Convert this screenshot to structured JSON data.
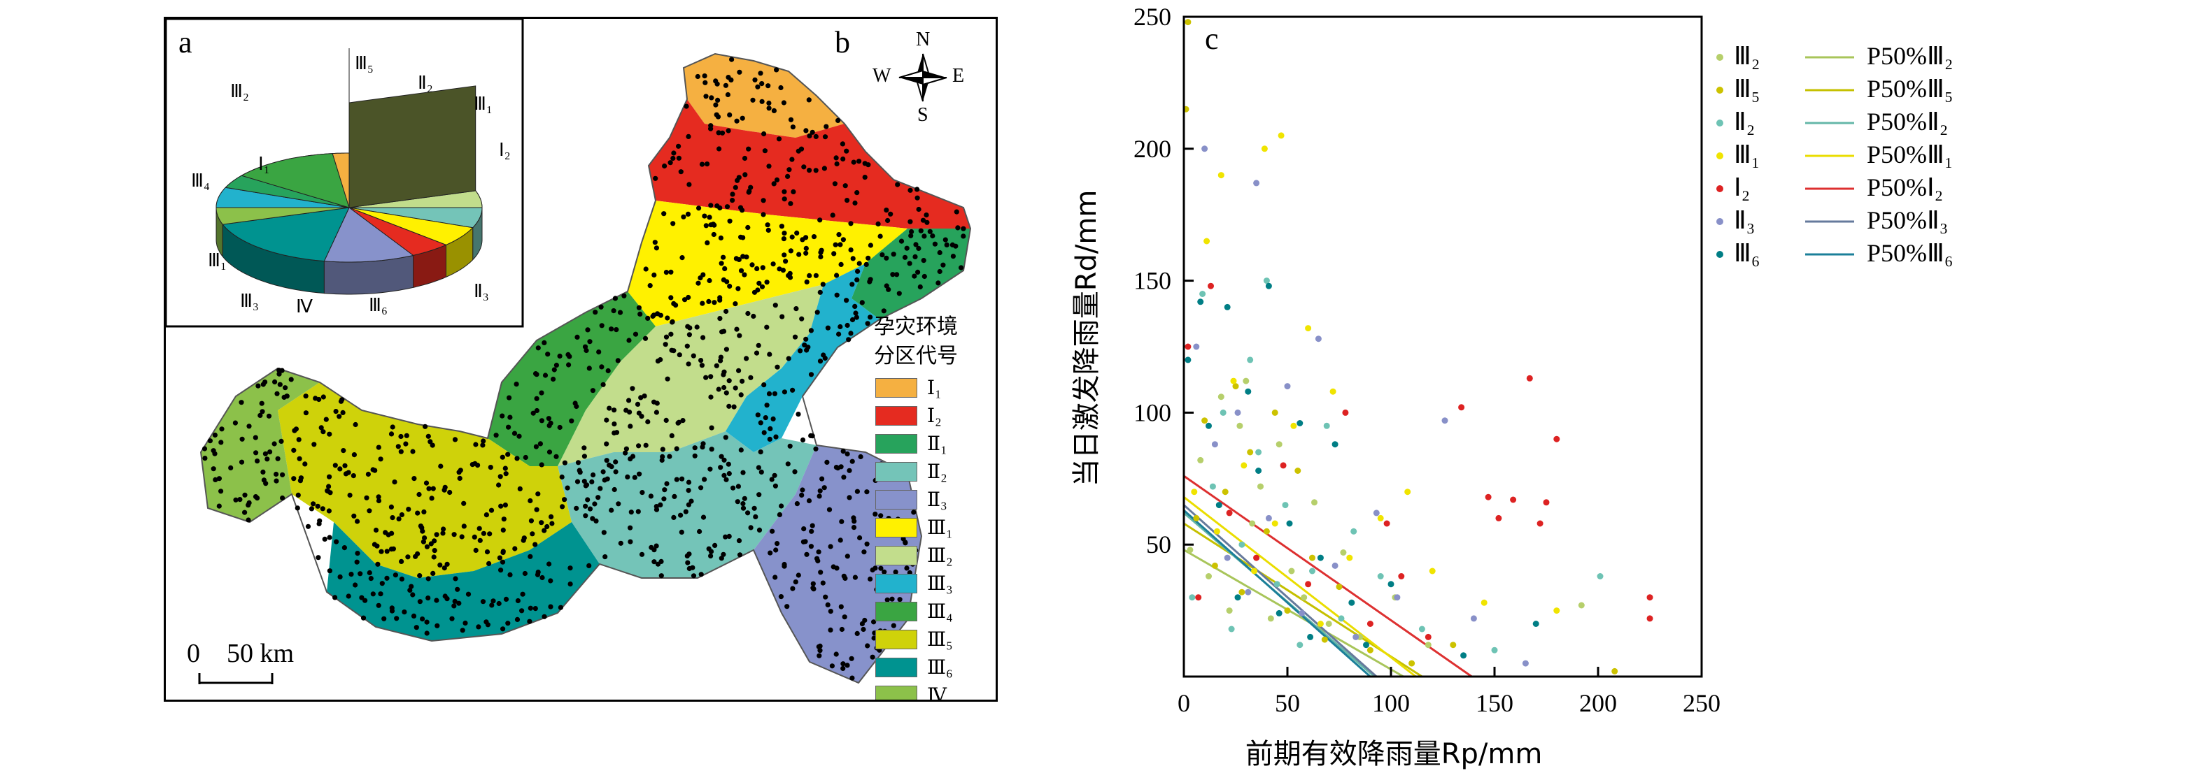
{
  "map_panel": {
    "label_a": "a",
    "label_b": "b",
    "legend_title_line1": "孕灾环境",
    "legend_title_line2": "分区代号",
    "compass": {
      "n": "N",
      "s": "S",
      "w": "W",
      "e": "E"
    },
    "scale_label": "0    50 km",
    "legend": [
      {
        "label": "Ⅰ₁",
        "color": "#f5b041"
      },
      {
        "label": "Ⅰ₂",
        "color": "#e52b20"
      },
      {
        "label": "Ⅱ₁",
        "color": "#27a35c"
      },
      {
        "label": "Ⅱ₂",
        "color": "#74c4b8"
      },
      {
        "label": "Ⅱ₃",
        "color": "#8792cb"
      },
      {
        "label": "Ⅲ₁",
        "color": "#fff100"
      },
      {
        "label": "Ⅲ₂",
        "color": "#c2dd8c"
      },
      {
        "label": "Ⅲ₃",
        "color": "#22b2cd"
      },
      {
        "label": "Ⅲ₄",
        "color": "#3aa542"
      },
      {
        "label": "Ⅲ₅",
        "color": "#cfd20a"
      },
      {
        "label": "Ⅲ₆",
        "color": "#009390"
      },
      {
        "label": "Ⅳ",
        "color": "#8cc14a"
      }
    ],
    "pie_labels": [
      "Ⅲ₅",
      "Ⅱ₂",
      "Ⅲ₁",
      "Ⅰ₂",
      "Ⅱ₃",
      "Ⅲ₆",
      "Ⅳ",
      "Ⅲ₃",
      "Ⅲ₁",
      "Ⅲ₄",
      "Ⅰ₁",
      "Ⅲ₂"
    ]
  },
  "chart_data": [
    {
      "type": "pie",
      "panel": "a",
      "labels": [
        "Ⅲ₂",
        "Ⅲ₅",
        "Ⅱ₂",
        "Ⅲ₁",
        "Ⅰ₂",
        "Ⅱ₃",
        "Ⅲ₆",
        "Ⅳ",
        "Ⅲ₃",
        "Ⅲ₁",
        "Ⅲ₄",
        "Ⅰ₁"
      ],
      "values": [
        20,
        5,
        6,
        6,
        5,
        11,
        17,
        5,
        6,
        4,
        13,
        2
      ],
      "colors": [
        "#4b5428",
        "#c2dd8c",
        "#74c4b8",
        "#fff100",
        "#e52b20",
        "#8792cb",
        "#009390",
        "#8cc14a",
        "#22b2cd",
        "#27a35c",
        "#3aa542",
        "#f5b041"
      ]
    },
    {
      "type": "scatter",
      "panel": "c",
      "label": "c",
      "xlabel": "前期有效降雨量Rp/mm",
      "ylabel": "当日激发降雨量Rd/mm",
      "xlim": [
        0,
        250
      ],
      "ylim": [
        0,
        250
      ],
      "xticks": [
        0,
        50,
        100,
        150,
        200,
        250
      ],
      "yticks": [
        50,
        100,
        150,
        200,
        250
      ],
      "series": [
        {
          "name": "Ⅲ₂",
          "color": "#b6cf6b",
          "points": [
            [
              3,
              48
            ],
            [
              8,
              82
            ],
            [
              12,
              38
            ],
            [
              18,
              106
            ],
            [
              22,
              25
            ],
            [
              27,
              95
            ],
            [
              30,
              112
            ],
            [
              33,
              58
            ],
            [
              37,
              72
            ],
            [
              42,
              22
            ],
            [
              46,
              88
            ],
            [
              52,
              40
            ],
            [
              58,
              30
            ],
            [
              63,
              66
            ],
            [
              70,
              20
            ],
            [
              77,
              47
            ],
            [
              85,
              15
            ],
            [
              102,
              30
            ],
            [
              118,
              12
            ],
            [
              192,
              27
            ]
          ]
        },
        {
          "name": "Ⅲ₅",
          "color": "#ccc200",
          "points": [
            [
              1,
              215
            ],
            [
              2,
              248
            ],
            [
              6,
              60
            ],
            [
              10,
              97
            ],
            [
              15,
              42
            ],
            [
              20,
              70
            ],
            [
              25,
              110
            ],
            [
              28,
              32
            ],
            [
              32,
              85
            ],
            [
              40,
              55
            ],
            [
              44,
              100
            ],
            [
              50,
              25
            ],
            [
              55,
              78
            ],
            [
              62,
              45
            ],
            [
              68,
              14
            ],
            [
              75,
              34
            ],
            [
              90,
              10
            ],
            [
              110,
              5
            ],
            [
              130,
              12
            ],
            [
              208,
              2
            ]
          ]
        },
        {
          "name": "Ⅱ₂",
          "color": "#6ec3b4",
          "points": [
            [
              4,
              30
            ],
            [
              9,
              145
            ],
            [
              14,
              72
            ],
            [
              19,
              100
            ],
            [
              23,
              18
            ],
            [
              28,
              50
            ],
            [
              32,
              120
            ],
            [
              36,
              85
            ],
            [
              40,
              150
            ],
            [
              45,
              35
            ],
            [
              49,
              65
            ],
            [
              56,
              12
            ],
            [
              62,
              40
            ],
            [
              69,
              95
            ],
            [
              76,
              22
            ],
            [
              82,
              55
            ],
            [
              95,
              38
            ],
            [
              115,
              18
            ],
            [
              150,
              10
            ],
            [
              201,
              38
            ]
          ]
        },
        {
          "name": "Ⅲ₁",
          "color": "#f0e400",
          "points": [
            [
              5,
              70
            ],
            [
              11,
              165
            ],
            [
              16,
              55
            ],
            [
              18,
              190
            ],
            [
              24,
              112
            ],
            [
              29,
              80
            ],
            [
              34,
              40
            ],
            [
              39,
              200
            ],
            [
              44,
              58
            ],
            [
              47,
              205
            ],
            [
              53,
              95
            ],
            [
              60,
              132
            ],
            [
              66,
              20
            ],
            [
              72,
              108
            ],
            [
              80,
              45
            ],
            [
              95,
              60
            ],
            [
              108,
              70
            ],
            [
              120,
              40
            ],
            [
              145,
              28
            ],
            [
              180,
              25
            ]
          ]
        },
        {
          "name": "Ⅰ₂",
          "color": "#dd2222",
          "points": [
            [
              2,
              125
            ],
            [
              7,
              30
            ],
            [
              13,
              148
            ],
            [
              22,
              62
            ],
            [
              35,
              45
            ],
            [
              48,
              80
            ],
            [
              60,
              35
            ],
            [
              78,
              100
            ],
            [
              90,
              20
            ],
            [
              98,
              58
            ],
            [
              105,
              38
            ],
            [
              118,
              15
            ],
            [
              134,
              102
            ],
            [
              147,
              68
            ],
            [
              152,
              60
            ],
            [
              159,
              67
            ],
            [
              167,
              113
            ],
            [
              172,
              58
            ],
            [
              175,
              66
            ],
            [
              180,
              90
            ],
            [
              225,
              22
            ],
            [
              225,
              30
            ]
          ]
        },
        {
          "name": "Ⅱ₃",
          "color": "#8890c8",
          "points": [
            [
              6,
              125
            ],
            [
              10,
              200
            ],
            [
              15,
              88
            ],
            [
              21,
              45
            ],
            [
              26,
              100
            ],
            [
              31,
              32
            ],
            [
              35,
              187
            ],
            [
              41,
              60
            ],
            [
              50,
              110
            ],
            [
              57,
              24
            ],
            [
              65,
              128
            ],
            [
              73,
              42
            ],
            [
              83,
              15
            ],
            [
              93,
              62
            ],
            [
              103,
              30
            ],
            [
              126,
              97
            ],
            [
              140,
              22
            ],
            [
              165,
              5
            ]
          ]
        },
        {
          "name": "Ⅲ₆",
          "color": "#007e85",
          "points": [
            [
              2,
              120
            ],
            [
              8,
              142
            ],
            [
              12,
              95
            ],
            [
              17,
              65
            ],
            [
              21,
              140
            ],
            [
              26,
              30
            ],
            [
              31,
              108
            ],
            [
              36,
              78
            ],
            [
              41,
              148
            ],
            [
              46,
              24
            ],
            [
              51,
              58
            ],
            [
              56,
              96
            ],
            [
              61,
              15
            ],
            [
              66,
              45
            ],
            [
              73,
              88
            ],
            [
              81,
              28
            ],
            [
              88,
              12
            ],
            [
              100,
              35
            ],
            [
              135,
              8
            ],
            [
              170,
              20
            ]
          ]
        }
      ],
      "fit_lines": [
        {
          "name": "P50%Ⅲ₂",
          "color": "#a8c55a",
          "x": [
            0,
            106
          ],
          "y": [
            48,
            0
          ]
        },
        {
          "name": "P50%Ⅲ₅",
          "color": "#c5c000",
          "x": [
            0,
            115
          ],
          "y": [
            58,
            0
          ]
        },
        {
          "name": "P50%Ⅱ₂",
          "color": "#64b7a8",
          "x": [
            0,
            92
          ],
          "y": [
            62,
            0
          ]
        },
        {
          "name": "P50%Ⅲ₁",
          "color": "#eadd00",
          "x": [
            0,
            112
          ],
          "y": [
            68,
            0
          ]
        },
        {
          "name": "P50%Ⅰ₂",
          "color": "#dd3030",
          "x": [
            0,
            139
          ],
          "y": [
            76,
            0
          ]
        },
        {
          "name": "P50%Ⅱ₃",
          "color": "#667a9c",
          "x": [
            0,
            93
          ],
          "y": [
            65,
            0
          ]
        },
        {
          "name": "P50%Ⅲ₆",
          "color": "#1b7f99",
          "x": [
            0,
            90
          ],
          "y": [
            63,
            0
          ]
        }
      ],
      "legend_series": [
        "Ⅲ₂",
        "Ⅲ₅",
        "Ⅱ₂",
        "Ⅲ₁",
        "Ⅰ₂",
        "Ⅱ₃",
        "Ⅲ₆"
      ],
      "legend_lines": [
        "P50%Ⅲ₂",
        "P50%Ⅲ₅",
        "P50%Ⅱ₂",
        "P50%Ⅲ₁",
        "P50%Ⅰ₂",
        "P50%Ⅱ₃",
        "P50%Ⅲ₆"
      ],
      "grid": false,
      "legend_position": "top-right"
    }
  ]
}
